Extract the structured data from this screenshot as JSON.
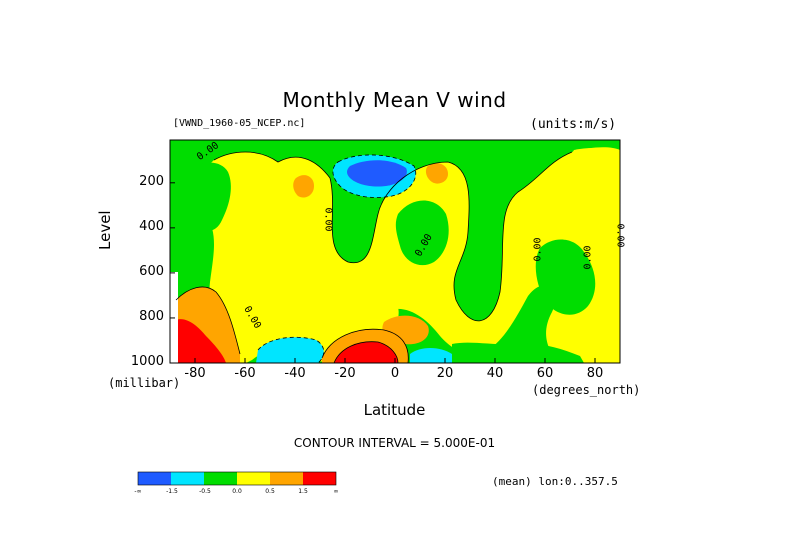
{
  "chart_data": {
    "type": "heatmap",
    "title": "Monthly Mean V wind",
    "dataset_label": "[VWND_1960-05_NCEP.nc]",
    "units_label": "(units:m/s)",
    "ylabel": "Level",
    "yunit": "(millibar)",
    "xlabel": "Latitude",
    "xunit": "(degrees_north)",
    "xlim": [
      -90,
      90
    ],
    "ylim": [
      1000,
      10
    ],
    "xticks": [
      -80,
      -60,
      -40,
      -20,
      0,
      20,
      40,
      60,
      80
    ],
    "xtick_labels": [
      "-80",
      "-60",
      "-40",
      "-20",
      "0",
      "20",
      "40",
      "60",
      "80"
    ],
    "yticks": [
      200,
      400,
      600,
      800,
      1000
    ],
    "ytick_labels": [
      "200",
      "400",
      "600",
      "800",
      "1000"
    ],
    "contour_interval_text": "CONTOUR INTERVAL = 5.000E-01",
    "contour_labels": [
      "0.00",
      "0.00",
      "0.00",
      "0.00",
      "0.00",
      "0.00",
      "0.00"
    ],
    "colorbar": {
      "colors": [
        "#1f5bff",
        "#00e5ff",
        "#00dd00",
        "#ffff00",
        "#ffa500",
        "#ff0000"
      ],
      "labels": [
        "-∞",
        "-1.5",
        "-0.5",
        "0.0",
        "0.5",
        "1.5",
        "∞"
      ]
    },
    "regions": [
      {
        "level": "green",
        "desc": "negative weak"
      },
      {
        "level": "yellow",
        "desc": "positive weak"
      }
    ]
  },
  "footer": {
    "lon_note": "(mean) lon:0..357.5"
  }
}
